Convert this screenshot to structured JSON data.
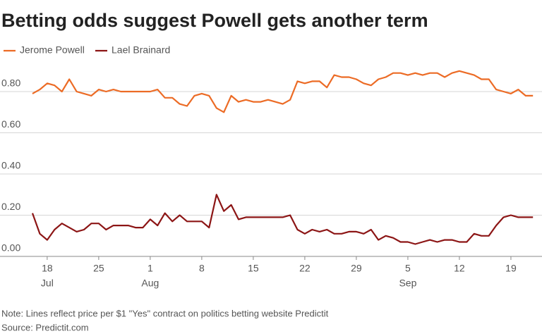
{
  "chart_data": {
    "type": "line",
    "title": "Betting odds suggest Powell gets another term",
    "notes": [
      "Note: Lines reflect price per $1 \"Yes\" contract on politics betting website Predictit",
      "Source: Predictit.com"
    ],
    "x": [
      "Jul 16",
      "Jul 17",
      "Jul 18",
      "Jul 19",
      "Jul 20",
      "Jul 21",
      "Jul 22",
      "Jul 23",
      "Jul 24",
      "Jul 25",
      "Jul 26",
      "Jul 27",
      "Jul 28",
      "Jul 29",
      "Jul 30",
      "Jul 31",
      "Aug 1",
      "Aug 2",
      "Aug 3",
      "Aug 4",
      "Aug 5",
      "Aug 6",
      "Aug 7",
      "Aug 8",
      "Aug 9",
      "Aug 10",
      "Aug 11",
      "Aug 12",
      "Aug 13",
      "Aug 14",
      "Aug 15",
      "Aug 16",
      "Aug 17",
      "Aug 18",
      "Aug 19",
      "Aug 20",
      "Aug 21",
      "Aug 22",
      "Aug 23",
      "Aug 24",
      "Aug 25",
      "Aug 26",
      "Aug 27",
      "Aug 28",
      "Aug 29",
      "Aug 30",
      "Aug 31",
      "Sep 1",
      "Sep 2",
      "Sep 3",
      "Sep 4",
      "Sep 5",
      "Sep 6",
      "Sep 7",
      "Sep 8",
      "Sep 9",
      "Sep 10",
      "Sep 11",
      "Sep 12",
      "Sep 13",
      "Sep 14",
      "Sep 15",
      "Sep 16",
      "Sep 17",
      "Sep 18",
      "Sep 19",
      "Sep 20",
      "Sep 21",
      "Sep 22"
    ],
    "series": [
      {
        "name": "Jerome Powell",
        "color": "#ec6b25",
        "values": [
          0.79,
          0.81,
          0.84,
          0.83,
          0.8,
          0.86,
          0.8,
          0.79,
          0.78,
          0.81,
          0.8,
          0.81,
          0.8,
          0.8,
          0.8,
          0.8,
          0.8,
          0.81,
          0.77,
          0.77,
          0.74,
          0.73,
          0.78,
          0.79,
          0.78,
          0.72,
          0.7,
          0.78,
          0.75,
          0.76,
          0.75,
          0.75,
          0.76,
          0.75,
          0.74,
          0.76,
          0.85,
          0.84,
          0.85,
          0.85,
          0.82,
          0.88,
          0.87,
          0.87,
          0.86,
          0.84,
          0.83,
          0.86,
          0.87,
          0.89,
          0.89,
          0.88,
          0.89,
          0.88,
          0.89,
          0.89,
          0.87,
          0.89,
          0.9,
          0.89,
          0.88,
          0.86,
          0.86,
          0.81,
          0.8,
          0.79,
          0.81,
          0.78,
          0.78
        ]
      },
      {
        "name": "Lael Brainard",
        "color": "#8c1515",
        "values": [
          0.21,
          0.11,
          0.08,
          0.13,
          0.16,
          0.14,
          0.12,
          0.13,
          0.16,
          0.16,
          0.13,
          0.15,
          0.15,
          0.15,
          0.14,
          0.14,
          0.18,
          0.15,
          0.21,
          0.17,
          0.2,
          0.17,
          0.17,
          0.17,
          0.14,
          0.3,
          0.22,
          0.25,
          0.18,
          0.19,
          0.19,
          0.19,
          0.19,
          0.19,
          0.19,
          0.2,
          0.13,
          0.11,
          0.13,
          0.12,
          0.13,
          0.11,
          0.11,
          0.12,
          0.12,
          0.11,
          0.13,
          0.08,
          0.1,
          0.09,
          0.07,
          0.07,
          0.06,
          0.07,
          0.08,
          0.07,
          0.08,
          0.08,
          0.07,
          0.07,
          0.11,
          0.1,
          0.1,
          0.15,
          0.19,
          0.2,
          0.19,
          0.19,
          0.19
        ]
      }
    ],
    "ylim": [
      0,
      0.93
    ],
    "yticks": [
      {
        "value": 0,
        "label": "0.00"
      },
      {
        "value": 0.2,
        "label": "0.20"
      },
      {
        "value": 0.4,
        "label": "0.40"
      },
      {
        "value": 0.6,
        "label": "0.60"
      },
      {
        "value": 0.8,
        "label": "0.80"
      }
    ],
    "xticks": [
      {
        "value": "Jul 18",
        "label": "18"
      },
      {
        "value": "Jul 25",
        "label": "25"
      },
      {
        "value": "Aug 1",
        "label": "1"
      },
      {
        "value": "Aug 8",
        "label": "8"
      },
      {
        "value": "Aug 15",
        "label": "15"
      },
      {
        "value": "Aug 22",
        "label": "22"
      },
      {
        "value": "Aug 29",
        "label": "29"
      },
      {
        "value": "Sep 5",
        "label": "5"
      },
      {
        "value": "Sep 12",
        "label": "12"
      },
      {
        "value": "Sep 19",
        "label": "19"
      }
    ],
    "xtick_months": [
      {
        "value": "Jul 18",
        "label": "Jul"
      },
      {
        "value": "Aug 1",
        "label": "Aug"
      },
      {
        "value": "Sep 5",
        "label": "Sep"
      }
    ],
    "grid": true
  }
}
